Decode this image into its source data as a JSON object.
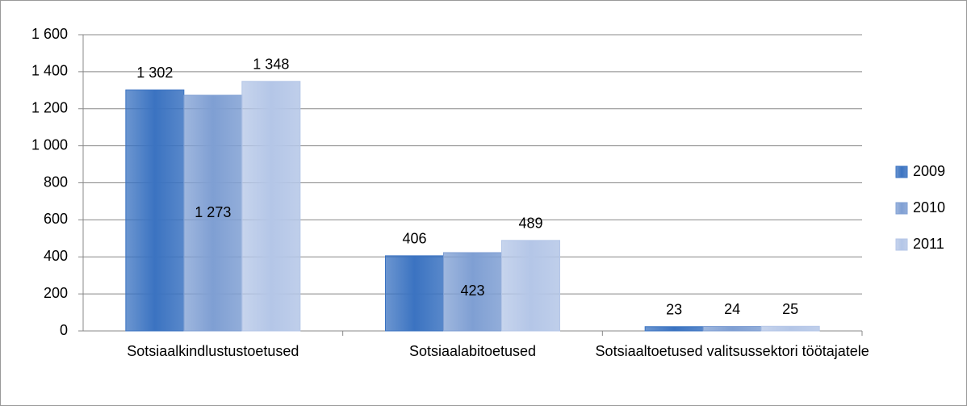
{
  "chart_data": {
    "type": "bar",
    "categories": [
      "Sotsiaalkindlustustoetused",
      "Sotsiaalabitoetused",
      "Sotsiaaltoetused valitsussektori töötajatele"
    ],
    "series": [
      {
        "name": "2009",
        "color": "#3b73c1",
        "values": [
          1302,
          406,
          23
        ],
        "value_labels": [
          "1 302",
          "406",
          "23"
        ]
      },
      {
        "name": "2010",
        "color": "#7f9fd3",
        "values": [
          1273,
          423,
          24
        ],
        "value_labels": [
          "1 273",
          "423",
          "24"
        ]
      },
      {
        "name": "2011",
        "color": "#b4c6e7",
        "values": [
          1348,
          489,
          25
        ],
        "value_labels": [
          "1 348",
          "489",
          "25"
        ]
      }
    ],
    "ylim": [
      0,
      1600
    ],
    "yticks": [
      0,
      200,
      400,
      600,
      800,
      {
        "value": 1000,
        "label": "1 000"
      },
      {
        "value": 1200,
        "label": "1 200"
      },
      {
        "value": 1400,
        "label": "1 400"
      },
      {
        "value": 1600,
        "label": "1 600"
      }
    ],
    "grid": true,
    "legend": "right"
  }
}
